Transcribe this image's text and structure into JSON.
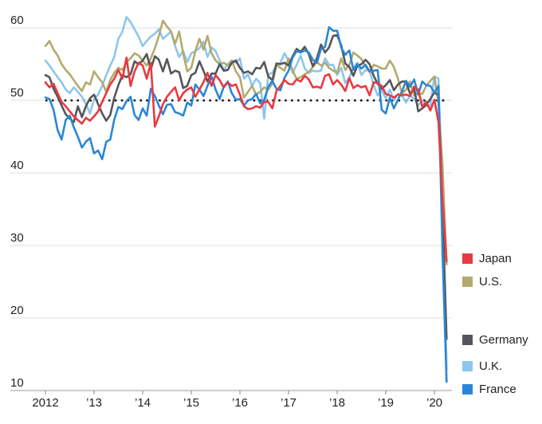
{
  "chart_data": {
    "type": "line",
    "x_unit": "month",
    "x_range_description": "January 2012 through April 2020, monthly",
    "x_tick_labels": [
      "2012",
      "’13",
      "’14",
      "’15",
      "’16",
      "’17",
      "’18",
      "’19",
      "’20"
    ],
    "y_ticks": [
      10,
      20,
      30,
      40,
      50,
      60
    ],
    "ylim": [
      10,
      62
    ],
    "grid": true,
    "legend_position": "right",
    "reference_line": {
      "value": 50,
      "style": "dotted",
      "color": "#000000"
    },
    "colors": {
      "japan": "#e83a42",
      "us": "#b3aa6e",
      "germany": "#555659",
      "uk": "#8dc6ec",
      "france": "#2b87d5",
      "grid": "#dcdcdc",
      "axis": "#999999",
      "text": "#222222"
    },
    "draw_order": [
      3,
      1,
      2,
      4,
      0
    ],
    "series": [
      {
        "id": "japan",
        "name": "Japan",
        "color": "#e83a42",
        "values": [
          52.5,
          51.8,
          52.3,
          51.0,
          49.8,
          49.2,
          48.5,
          47.8,
          47.3,
          46.8,
          47.6,
          47.2,
          47.8,
          48.5,
          49.8,
          51.0,
          52.2,
          53.0,
          54.2,
          53.0,
          55.9,
          52.0,
          54.0,
          55.2,
          54.8,
          53.0,
          55.2,
          46.4,
          47.8,
          49.5,
          50.5,
          51.2,
          51.8,
          50.0,
          51.0,
          51.5,
          51.8,
          50.5,
          51.5,
          52.5,
          53.8,
          52.0,
          53.5,
          52.8,
          51.8,
          52.5,
          52.0,
          52.2,
          50.8,
          49.2,
          48.8,
          48.9,
          49.2,
          49.0,
          49.8,
          49.8,
          48.9,
          51.3,
          52.0,
          52.8,
          52.3,
          52.2,
          52.9,
          52.6,
          53.4,
          52.9,
          51.8,
          51.9,
          51.7,
          53.4,
          53.6,
          52.2,
          52.8,
          52.2,
          51.3,
          53.1,
          51.7,
          52.1,
          51.8,
          52.0,
          50.7,
          52.5,
          52.4,
          52.0,
          50.9,
          50.7,
          50.4,
          50.8,
          50.7,
          50.8,
          50.6,
          51.9,
          51.5,
          49.1,
          49.8,
          48.6,
          50.1,
          47.0,
          36.2,
          27.8
        ]
      },
      {
        "id": "us",
        "name": "U.S.",
        "color": "#b3aa6e",
        "values": [
          57.5,
          58.2,
          57.0,
          56.2,
          55.0,
          54.2,
          53.6,
          52.8,
          52.0,
          51.3,
          52.5,
          52.2,
          54.0,
          53.2,
          52.5,
          51.2,
          52.8,
          53.8,
          54.5,
          54.2,
          55.3,
          55.8,
          56.5,
          56.2,
          55.5,
          54.8,
          55.8,
          57.2,
          58.9,
          61.0,
          60.2,
          59.5,
          57.8,
          59.5,
          56.5,
          54.0,
          54.5,
          56.8,
          58.5,
          57.0,
          58.9,
          56.5,
          55.5,
          55.0,
          55.2,
          54.8,
          55.5,
          54.0,
          53.2,
          50.4,
          51.2,
          52.0,
          50.8,
          51.2,
          51.8,
          51.5,
          52.3,
          54.9,
          54.5,
          54.1,
          55.8,
          54.1,
          53.0,
          53.2,
          53.6,
          53.9,
          54.6,
          55.3,
          54.8,
          55.2,
          54.5,
          54.1,
          53.8,
          55.8,
          54.2,
          54.9,
          56.6,
          56.2,
          55.7,
          54.7,
          53.9,
          54.9,
          54.7,
          54.4,
          54.4,
          55.5,
          54.6,
          53.0,
          50.9,
          51.5,
          52.6,
          50.7,
          51.0,
          50.9,
          52.0,
          52.7,
          53.3,
          49.6,
          40.9,
          27.4
        ]
      },
      {
        "id": "germany",
        "name": "Germany",
        "color": "#555659",
        "values": [
          53.5,
          53.2,
          51.6,
          50.5,
          49.3,
          48.1,
          47.5,
          47.0,
          49.2,
          47.7,
          49.2,
          50.3,
          50.8,
          49.5,
          48.2,
          47.2,
          48.0,
          50.4,
          52.1,
          53.5,
          53.2,
          53.6,
          55.4,
          55.0,
          55.5,
          56.4,
          54.3,
          56.1,
          55.6,
          54.0,
          55.7,
          53.7,
          54.1,
          53.9,
          51.7,
          52.0,
          53.5,
          53.8,
          55.4,
          54.1,
          52.6,
          53.7,
          53.7,
          55.0,
          54.1,
          54.2,
          55.2,
          55.5,
          54.5,
          53.8,
          54.0,
          53.6,
          54.5,
          54.4,
          55.3,
          53.3,
          52.8,
          55.1,
          55.0,
          55.2,
          54.8,
          56.1,
          57.1,
          56.7,
          57.4,
          56.4,
          54.7,
          55.8,
          57.7,
          56.6,
          57.3,
          58.9,
          59.0,
          57.6,
          55.1,
          54.6,
          53.4,
          54.8,
          55.0,
          55.6,
          55.0,
          53.4,
          52.3,
          51.6,
          52.1,
          52.8,
          51.4,
          52.2,
          52.6,
          52.6,
          50.9,
          51.7,
          48.5,
          48.9,
          49.4,
          50.2,
          51.1,
          50.7,
          35.0,
          17.1
        ]
      },
      {
        "id": "uk",
        "name": "U.K.",
        "color": "#8dc6ec",
        "values": [
          55.5,
          54.8,
          54.0,
          53.2,
          52.5,
          51.5,
          51.0,
          51.8,
          51.2,
          50.5,
          49.5,
          48.2,
          50.2,
          50.8,
          52.0,
          53.5,
          54.8,
          56.0,
          58.5,
          59.5,
          61.5,
          60.8,
          59.8,
          58.8,
          57.5,
          58.2,
          58.8,
          59.2,
          59.8,
          58.5,
          59.0,
          59.5,
          57.5,
          56.0,
          56.8,
          55.3,
          56.5,
          56.8,
          57.2,
          58.1,
          56.0,
          57.3,
          56.8,
          55.5,
          54.2,
          55.0,
          55.5,
          55.2,
          55.8,
          53.0,
          53.6,
          52.0,
          53.0,
          52.4,
          47.5,
          53.6,
          53.8,
          54.8,
          55.2,
          56.5,
          55.5,
          53.8,
          54.9,
          56.2,
          54.4,
          53.8,
          54.1,
          54.0,
          54.1,
          55.8,
          54.9,
          54.9,
          53.5,
          54.5,
          52.4,
          53.2,
          54.5,
          55.2,
          53.5,
          54.2,
          54.1,
          52.1,
          50.7,
          51.4,
          50.3,
          51.5,
          50.0,
          50.9,
          50.7,
          49.7,
          50.7,
          50.2,
          49.3,
          50.0,
          49.3,
          49.3,
          53.3,
          53.0,
          36.0,
          12.9
        ]
      },
      {
        "id": "france",
        "name": "France",
        "color": "#2b87d5",
        "values": [
          50.4,
          50.2,
          48.7,
          45.9,
          44.6,
          47.3,
          47.9,
          46.3,
          45.0,
          43.5,
          44.3,
          44.8,
          42.7,
          43.1,
          41.9,
          44.3,
          44.6,
          47.4,
          49.1,
          48.8,
          49.9,
          50.5,
          48.0,
          47.3,
          48.9,
          47.9,
          51.6,
          50.6,
          49.3,
          48.1,
          49.4,
          49.5,
          48.4,
          48.2,
          47.9,
          49.7,
          49.3,
          52.2,
          51.5,
          50.6,
          52.0,
          53.3,
          51.5,
          50.2,
          51.9,
          52.6,
          51.0,
          50.1,
          50.2,
          49.3,
          50.0,
          50.2,
          50.9,
          49.6,
          50.1,
          51.9,
          52.7,
          51.6,
          51.4,
          53.1,
          54.1,
          55.9,
          56.8,
          56.6,
          56.9,
          56.6,
          55.6,
          55.2,
          57.1,
          57.4,
          60.1,
          59.6,
          59.6,
          57.3,
          56.3,
          56.9,
          54.2,
          55.0,
          54.4,
          54.9,
          54.0,
          54.1,
          54.2,
          48.7,
          48.2,
          50.4,
          48.9,
          50.1,
          51.2,
          52.7,
          51.9,
          52.9,
          50.8,
          52.6,
          52.1,
          52.0,
          51.1,
          52.0,
          28.9,
          11.2
        ]
      }
    ]
  }
}
